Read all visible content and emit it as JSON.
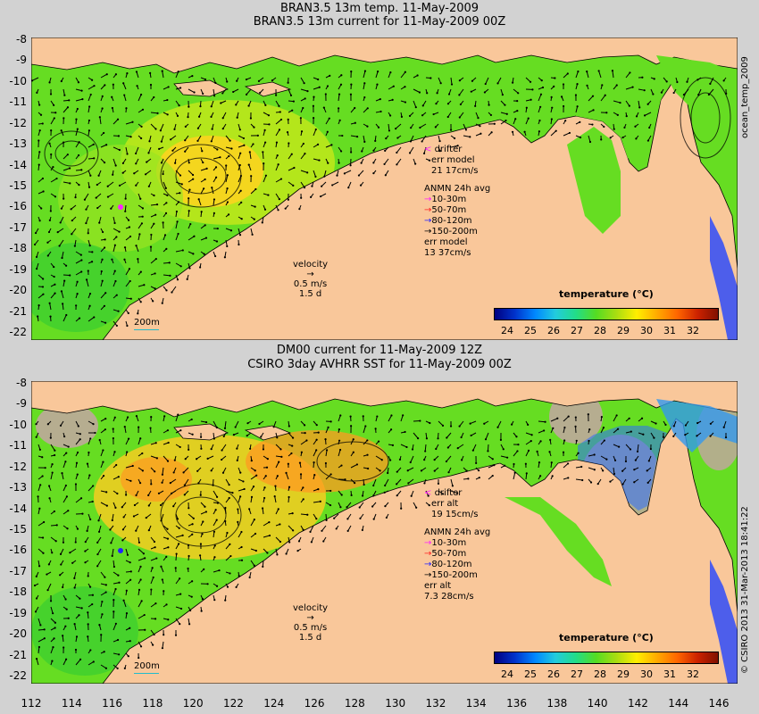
{
  "top_panel": {
    "title_line1": "BRAN3.5 13m temp. 11-May-2009",
    "title_line2": "BRAN3.5 13m current for 11-May-2009 00Z",
    "y_ticks": [
      "-8",
      "-9",
      "-10",
      "-11",
      "-12",
      "-13",
      "-14",
      "-15",
      "-16",
      "-17",
      "-18",
      "-19",
      "-20",
      "-21",
      "-22"
    ],
    "legend": {
      "drifter": "drifter",
      "err_label": "err model",
      "err_value": "21 17cm/s",
      "anmn_title": "ANMN 24h avg",
      "depths": [
        "10-30m",
        "50-70m",
        "80-120m",
        "150-200m"
      ],
      "err2_label": "err model",
      "err2_value": "13 37cm/s"
    },
    "velocity": {
      "label": "velocity",
      "speed": "0.5 m/s",
      "time": "1.5 d"
    },
    "isobath": "200m",
    "colorbar_title": "temperature (°C)",
    "colorbar_ticks": [
      "24",
      "25",
      "26",
      "27",
      "28",
      "29",
      "30",
      "31",
      "32"
    ],
    "side_label": "ocean_temp_2009"
  },
  "bottom_panel": {
    "title_line1": "DM00 current for 11-May-2009 12Z",
    "title_line2": "CSIRO 3day AVHRR SST for 11-May-2009 00Z",
    "y_ticks": [
      "-8",
      "-9",
      "-10",
      "-11",
      "-12",
      "-13",
      "-14",
      "-15",
      "-16",
      "-17",
      "-18",
      "-19",
      "-20",
      "-21",
      "-22"
    ],
    "legend": {
      "drifter": "drifter",
      "err_label": "err alt",
      "err_value": "19 15cm/s",
      "anmn_title": "ANMN 24h avg",
      "depths": [
        "10-30m",
        "50-70m",
        "80-120m",
        "150-200m"
      ],
      "err2_label": "err alt",
      "err2_value": "7.3 28cm/s"
    },
    "velocity": {
      "label": "velocity",
      "speed": "0.5 m/s",
      "time": "1.5 d"
    },
    "isobath": "200m",
    "colorbar_title": "temperature (°C)",
    "colorbar_ticks": [
      "24",
      "25",
      "26",
      "27",
      "28",
      "29",
      "30",
      "31",
      "32"
    ],
    "side_label": "© CSIRO 2013   31-Mar-2013 18:41:22"
  },
  "x_ticks": [
    "112",
    "114",
    "116",
    "118",
    "120",
    "122",
    "124",
    "126",
    "128",
    "130",
    "132",
    "134",
    "136",
    "138",
    "140",
    "142",
    "144",
    "146"
  ],
  "colors": {
    "land": "#f9c79a",
    "background": "#d2d2d2",
    "ocean_main": "#66dd22",
    "ocean_warm": "#ffcc22",
    "coast_blue": "#2244ff",
    "no_data": "#bfa79c",
    "drifter_magenta": "#ff22ff",
    "depth_colors": [
      "#ff22ff",
      "#ff2222",
      "#2222ff",
      "#000000"
    ]
  }
}
